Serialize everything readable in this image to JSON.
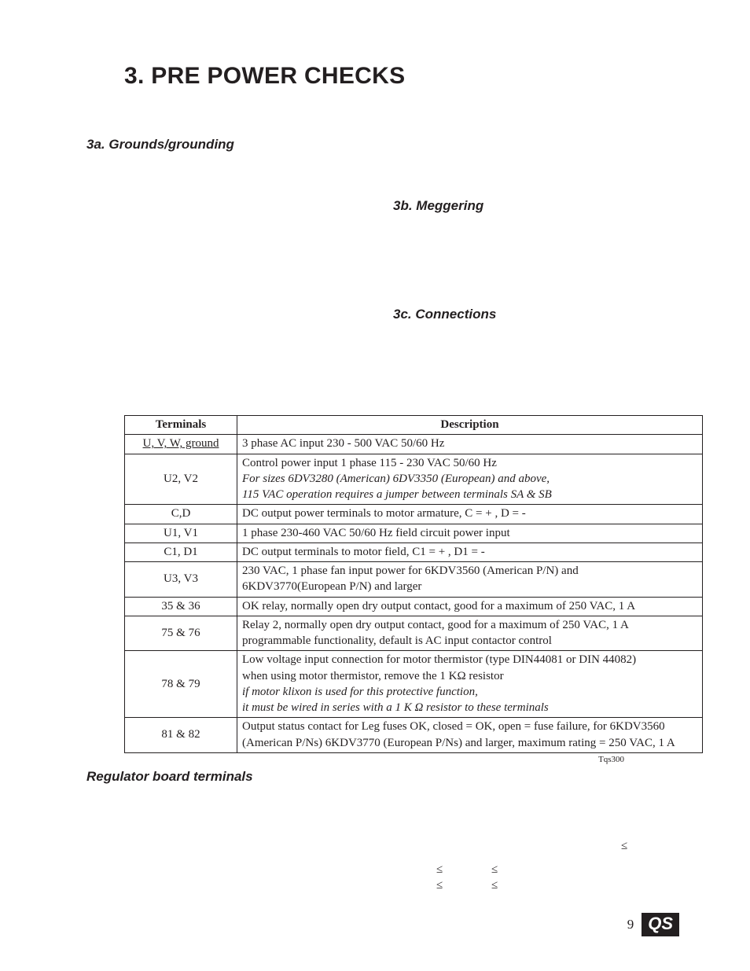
{
  "chapter": {
    "title": "3. PRE POWER CHECKS"
  },
  "sections": {
    "a": "3a. Grounds/grounding",
    "b": "3b. Meggering",
    "c": "3c. Connections"
  },
  "power_table": {
    "headers": {
      "terminals": "Terminals",
      "description": "Description"
    },
    "rows": [
      {
        "terminals": "U, V, W,  ground",
        "terminals_underline": true,
        "lines": [
          {
            "t": "3 phase AC input 230 - 500 VAC   50/60 Hz"
          }
        ]
      },
      {
        "terminals": "U2, V2",
        "lines": [
          {
            "t": "Control power input 1 phase 115 - 230 VAC  50/60 Hz"
          },
          {
            "t": "For sizes 6DV3280 (American) 6DV3350 (European) and above,",
            "italic": true
          },
          {
            "t": "115 VAC operation requires a jumper between terminals SA & SB",
            "italic": true
          }
        ]
      },
      {
        "terminals": "C,D",
        "lines": [
          {
            "t": "DC output power terminals to motor armature,   C = +  , D =  -"
          }
        ]
      },
      {
        "terminals": "U1, V1",
        "lines": [
          {
            "t": "1 phase 230-460 VAC  50/60 Hz    field circuit power input"
          }
        ]
      },
      {
        "terminals": "C1, D1",
        "lines": [
          {
            "t": "DC output terminals to motor field,   C1 =  +  , D1 =   -"
          }
        ]
      },
      {
        "terminals": "U3, V3",
        "lines": [
          {
            "t": "230 VAC, 1 phase fan input power for 6KDV3560 (American P/N) and"
          },
          {
            "t": "6KDV3770(European P/N) and larger"
          }
        ]
      },
      {
        "terminals": "35 & 36",
        "lines": [
          {
            "t": "OK relay, normally open dry output contact,  good for a maximum of 250 VAC, 1 A"
          }
        ]
      },
      {
        "terminals": "75 & 76",
        "lines": [
          {
            "t": "Relay 2, normally open dry output contact,  good for a maximum of 250 VAC, 1 A"
          },
          {
            "t": "programmable functionality, default is AC input contactor control"
          }
        ]
      },
      {
        "terminals": "78 & 79",
        "lines": [
          {
            "t": "Low voltage input connection for motor thermistor (type DIN44081 or DIN 44082)"
          },
          {
            "t": "when using motor thermistor, remove the 1 KΩ resistor"
          },
          {
            "t": "if motor klixon is used for this protective function,",
            "italic": true
          },
          {
            "t": "it must be wired in series with a 1 K Ω  resistor to these terminals",
            "italic": true
          }
        ]
      },
      {
        "terminals": "81 & 82",
        "lines": [
          {
            "t": "Output status contact for Leg fuses OK, closed  =  OK, open  =  fuse failure, for 6KDV3560"
          },
          {
            "t": " (American P/Ns)  6KDV3770 (European P/Ns) and larger, maximum rating  =  250 VAC, 1 A"
          }
        ]
      }
    ],
    "code": "Tqs300"
  },
  "regulator": {
    "heading": "Regulator board terminals"
  },
  "stray_symbols": {
    "s1": "≤",
    "s2": "≤",
    "s3": "≤",
    "s4": "≤",
    "s5": "≤"
  },
  "footer": {
    "page": "9",
    "badge": "QS"
  }
}
